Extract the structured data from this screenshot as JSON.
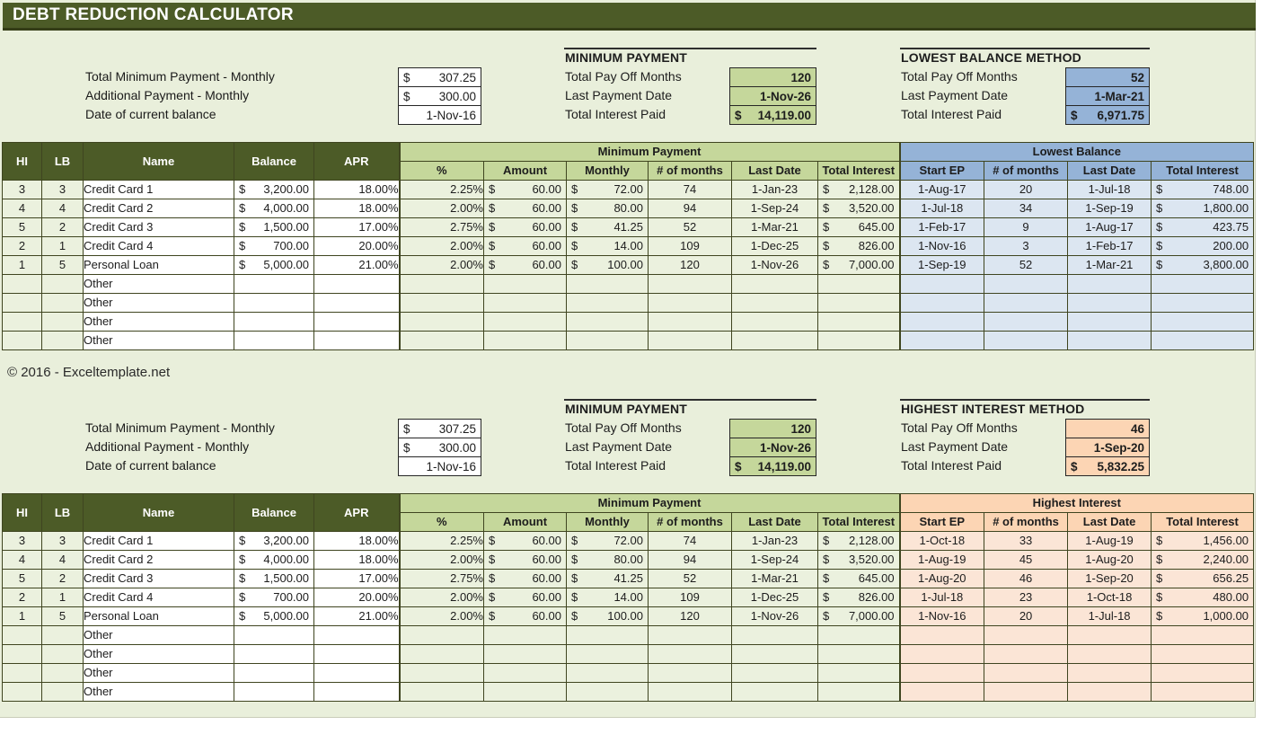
{
  "colors": {
    "title_bar": "#4c5b27",
    "header_dark": "#4c5b27",
    "green_mid": "#c5d79b",
    "green_pale": "#ebf1de",
    "blue_mid": "#95b3d7",
    "blue_pale": "#dce6f1",
    "orange_mid": "#fcd5b4",
    "orange_pale": "#fbe5d6",
    "background": "#e9efdb"
  },
  "title_bar": {
    "title": "DEBT REDUCTION CALCULATOR"
  },
  "footer": {
    "copyright": "© 2016 - Exceltemplate.net"
  },
  "table_meta": {
    "currency_symbol": "$",
    "left_cols": [
      "HI",
      "LB",
      "Name",
      "Balance",
      "APR"
    ],
    "minimum_payment_group": "Minimum Payment",
    "mp_cols": [
      "%",
      "Amount",
      "Monthly",
      "# of months",
      "Last Date",
      "Total Interest"
    ],
    "accent_cols": [
      "Start EP",
      "# of months",
      "Last Date",
      "Total Interest"
    ],
    "col_keys": [
      "hi",
      "lb",
      "name",
      "balance",
      "apr",
      "percent",
      "amount",
      "monthly",
      "num-months",
      "last-date",
      "total-interest",
      "start-ep",
      "num-months-accent",
      "last-date-accent",
      "total-interest-accent"
    ],
    "col_types": [
      "center",
      "center",
      "text",
      "currency",
      "right",
      "right",
      "currency",
      "currency",
      "center",
      "center",
      "currency",
      "center",
      "center",
      "center",
      "currency"
    ],
    "col_zones": [
      "g",
      "g",
      "w",
      "w",
      "w",
      "g",
      "g",
      "g",
      "g",
      "g",
      "g",
      "a",
      "a",
      "a",
      "a"
    ]
  },
  "sections": [
    {
      "accent": "blue",
      "left_panel": {
        "rows": [
          {
            "label": "Total Minimum Payment - Monthly",
            "prefix": "$",
            "value": "307.25"
          },
          {
            "label": "Additional Payment - Monthly",
            "prefix": "$",
            "value": "300.00"
          },
          {
            "label": "Date of current balance",
            "prefix": "",
            "value": "1-Nov-16"
          }
        ]
      },
      "minimum_payment_block": {
        "title": "MINIMUM PAYMENT",
        "rows": [
          {
            "label": "Total Pay Off Months",
            "prefix": "",
            "value": "120"
          },
          {
            "label": "Last Payment Date",
            "prefix": "",
            "value": "1-Nov-26"
          },
          {
            "label": "Total Interest Paid",
            "prefix": "$",
            "value": "14,119.00"
          }
        ]
      },
      "method_block": {
        "title": "LOWEST BALANCE METHOD",
        "rows": [
          {
            "label": "Total Pay Off Months",
            "prefix": "",
            "value": "52"
          },
          {
            "label": "Last Payment Date",
            "prefix": "",
            "value": "1-Mar-21"
          },
          {
            "label": "Total Interest Paid",
            "prefix": "$",
            "value": "6,971.75"
          }
        ]
      },
      "table": {
        "group2": "Lowest Balance",
        "rows": [
          [
            "3",
            "3",
            "Credit Card 1",
            "3,200.00",
            "18.00%",
            "2.25%",
            "60.00",
            "72.00",
            "74",
            "1-Jan-23",
            "2,128.00",
            "1-Aug-17",
            "20",
            "1-Jul-18",
            "748.00"
          ],
          [
            "4",
            "4",
            "Credit Card 2",
            "4,000.00",
            "18.00%",
            "2.00%",
            "60.00",
            "80.00",
            "94",
            "1-Sep-24",
            "3,520.00",
            "1-Jul-18",
            "34",
            "1-Sep-19",
            "1,800.00"
          ],
          [
            "5",
            "2",
            "Credit Card 3",
            "1,500.00",
            "17.00%",
            "2.75%",
            "60.00",
            "41.25",
            "52",
            "1-Mar-21",
            "645.00",
            "1-Feb-17",
            "9",
            "1-Aug-17",
            "423.75"
          ],
          [
            "2",
            "1",
            "Credit Card 4",
            "700.00",
            "20.00%",
            "2.00%",
            "60.00",
            "14.00",
            "109",
            "1-Dec-25",
            "826.00",
            "1-Nov-16",
            "3",
            "1-Feb-17",
            "200.00"
          ],
          [
            "1",
            "5",
            "Personal Loan",
            "5,000.00",
            "21.00%",
            "2.00%",
            "60.00",
            "100.00",
            "120",
            "1-Nov-26",
            "7,000.00",
            "1-Sep-19",
            "52",
            "1-Mar-21",
            "3,800.00"
          ],
          [
            "",
            "",
            "Other",
            "",
            "",
            "",
            "",
            "",
            "",
            "",
            "",
            "",
            "",
            "",
            ""
          ],
          [
            "",
            "",
            "Other",
            "",
            "",
            "",
            "",
            "",
            "",
            "",
            "",
            "",
            "",
            "",
            ""
          ],
          [
            "",
            "",
            "Other",
            "",
            "",
            "",
            "",
            "",
            "",
            "",
            "",
            "",
            "",
            "",
            ""
          ],
          [
            "",
            "",
            "Other",
            "",
            "",
            "",
            "",
            "",
            "",
            "",
            "",
            "",
            "",
            "",
            ""
          ]
        ]
      }
    },
    {
      "accent": "orange",
      "left_panel": {
        "rows": [
          {
            "label": "Total Minimum Payment - Monthly",
            "prefix": "$",
            "value": "307.25"
          },
          {
            "label": "Additional Payment - Monthly",
            "prefix": "$",
            "value": "300.00"
          },
          {
            "label": "Date of current balance",
            "prefix": "",
            "value": "1-Nov-16"
          }
        ]
      },
      "minimum_payment_block": {
        "title": "MINIMUM PAYMENT",
        "rows": [
          {
            "label": "Total Pay Off Months",
            "prefix": "",
            "value": "120"
          },
          {
            "label": "Last Payment Date",
            "prefix": "",
            "value": "1-Nov-26"
          },
          {
            "label": "Total Interest Paid",
            "prefix": "$",
            "value": "14,119.00"
          }
        ]
      },
      "method_block": {
        "title": "HIGHEST INTEREST METHOD",
        "rows": [
          {
            "label": "Total Pay Off Months",
            "prefix": "",
            "value": "46"
          },
          {
            "label": "Last Payment Date",
            "prefix": "",
            "value": "1-Sep-20"
          },
          {
            "label": "Total Interest Paid",
            "prefix": "$",
            "value": "5,832.25"
          }
        ]
      },
      "table": {
        "group2": "Highest Interest",
        "rows": [
          [
            "3",
            "3",
            "Credit Card 1",
            "3,200.00",
            "18.00%",
            "2.25%",
            "60.00",
            "72.00",
            "74",
            "1-Jan-23",
            "2,128.00",
            "1-Oct-18",
            "33",
            "1-Aug-19",
            "1,456.00"
          ],
          [
            "4",
            "4",
            "Credit Card 2",
            "4,000.00",
            "18.00%",
            "2.00%",
            "60.00",
            "80.00",
            "94",
            "1-Sep-24",
            "3,520.00",
            "1-Aug-19",
            "45",
            "1-Aug-20",
            "2,240.00"
          ],
          [
            "5",
            "2",
            "Credit Card 3",
            "1,500.00",
            "17.00%",
            "2.75%",
            "60.00",
            "41.25",
            "52",
            "1-Mar-21",
            "645.00",
            "1-Aug-20",
            "46",
            "1-Sep-20",
            "656.25"
          ],
          [
            "2",
            "1",
            "Credit Card 4",
            "700.00",
            "20.00%",
            "2.00%",
            "60.00",
            "14.00",
            "109",
            "1-Dec-25",
            "826.00",
            "1-Jul-18",
            "23",
            "1-Oct-18",
            "480.00"
          ],
          [
            "1",
            "5",
            "Personal Loan",
            "5,000.00",
            "21.00%",
            "2.00%",
            "60.00",
            "100.00",
            "120",
            "1-Nov-26",
            "7,000.00",
            "1-Nov-16",
            "20",
            "1-Jul-18",
            "1,000.00"
          ],
          [
            "",
            "",
            "Other",
            "",
            "",
            "",
            "",
            "",
            "",
            "",
            "",
            "",
            "",
            "",
            ""
          ],
          [
            "",
            "",
            "Other",
            "",
            "",
            "",
            "",
            "",
            "",
            "",
            "",
            "",
            "",
            "",
            ""
          ],
          [
            "",
            "",
            "Other",
            "",
            "",
            "",
            "",
            "",
            "",
            "",
            "",
            "",
            "",
            "",
            ""
          ],
          [
            "",
            "",
            "Other",
            "",
            "",
            "",
            "",
            "",
            "",
            "",
            "",
            "",
            "",
            "",
            ""
          ]
        ]
      }
    }
  ]
}
